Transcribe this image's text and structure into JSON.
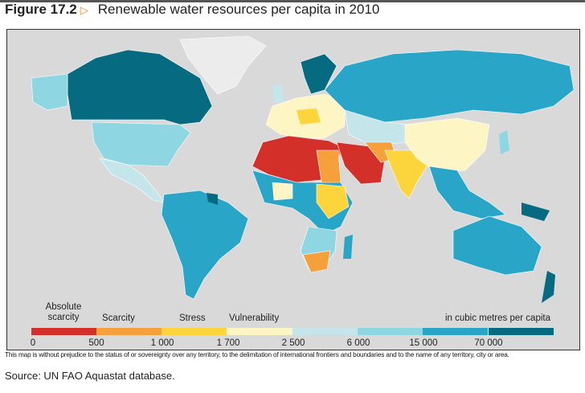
{
  "figure_label": "Figure 17.2",
  "arrow_icon": "triangle-right-icon",
  "title": "Renewable water resources per capita in 2010",
  "legend": {
    "categories": [
      {
        "label": "Absolute scarcity",
        "color": "#d4302a"
      },
      {
        "label": "Scarcity",
        "color": "#f5a03a"
      },
      {
        "label": "Stress",
        "color": "#fcd43c"
      },
      {
        "label": "Vulnerability",
        "color": "#fef5c4"
      }
    ],
    "unit": "in cubic metres per capita",
    "colors": [
      "#d4302a",
      "#f5a03a",
      "#fcd43c",
      "#fef5c4",
      "#c4e6ea",
      "#8dd6e2",
      "#29a5c8",
      "#066a80"
    ],
    "ticks": [
      "0",
      "500",
      "1 000",
      "1 700",
      "2 500",
      "6 000",
      "15 000",
      "70 000"
    ]
  },
  "disclaimer": "This map is without prejudice to the status of or sovereignty over any territory, to the delimitation of international frontiers and boundaries and to the name of any territory, city or area.",
  "source": "Source: UN FAO Aquastat database."
}
